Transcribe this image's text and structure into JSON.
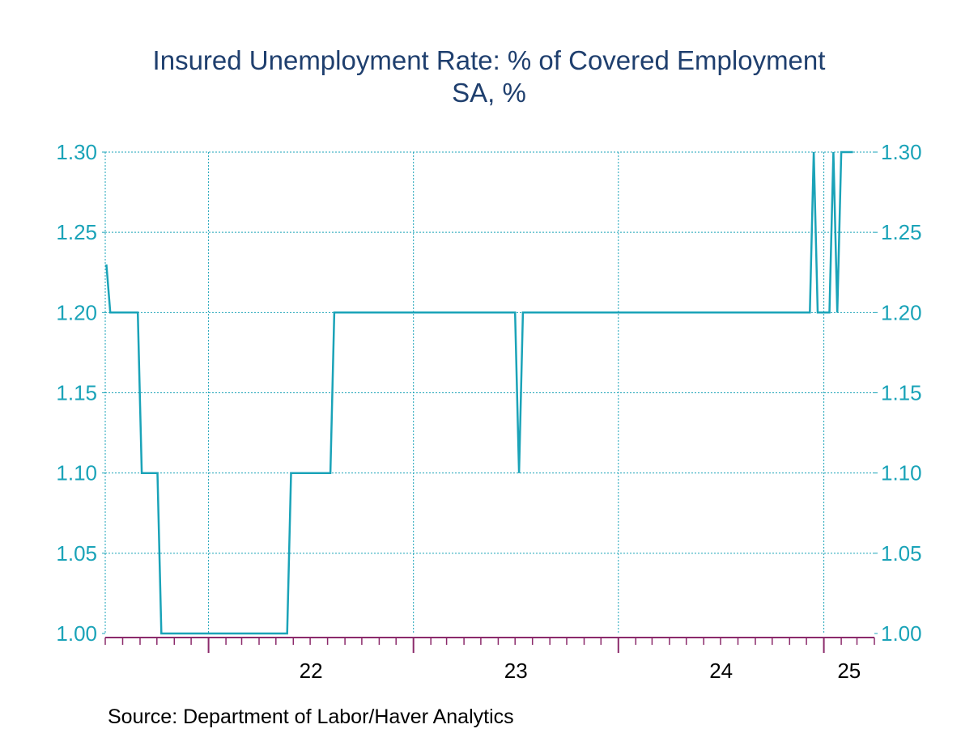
{
  "chart_data": {
    "type": "line",
    "title": "Insured Unemployment Rate: % of Covered Employment",
    "subtitle": "SA, %",
    "source": "Source:  Department of Labor/Haver Analytics",
    "ylim": [
      1.0,
      1.3
    ],
    "y_ticks": [
      "1.30",
      "1.25",
      "1.20",
      "1.15",
      "1.10",
      "1.05",
      "1.00"
    ],
    "x_tick_labels": [
      "22",
      "23",
      "24",
      "25"
    ],
    "grid": true,
    "colors": {
      "line": "#1aa3b8",
      "axis_text": "#1aa3b8",
      "title": "#1f3f6e",
      "x_axis": "#8b2a6b",
      "grid": "#1aa3b8"
    },
    "x_range": [
      "2021-07-01",
      "2025-04-01"
    ],
    "series": [
      {
        "x": [
          "2021-07-03",
          "2021-07-10",
          "2021-07-17",
          "2021-07-24",
          "2021-07-31",
          "2021-08-07",
          "2021-08-14",
          "2021-08-21",
          "2021-08-28",
          "2021-09-04",
          "2021-09-11",
          "2021-09-18",
          "2021-09-25",
          "2021-10-02",
          "2021-10-09",
          "2021-10-16",
          "2021-10-23",
          "2021-10-30",
          "2021-11-06",
          "2021-11-13",
          "2021-11-20",
          "2021-11-27",
          "2022-05-07",
          "2022-05-14",
          "2022-05-21",
          "2022-05-28",
          "2022-06-04",
          "2022-06-11",
          "2022-06-18",
          "2022-06-25",
          "2022-07-02",
          "2022-07-09",
          "2022-07-16",
          "2022-07-23",
          "2022-07-30",
          "2022-08-06",
          "2022-08-13",
          "2022-08-20",
          "2022-08-27",
          "2023-06-24",
          "2023-07-01",
          "2023-07-08",
          "2023-07-15",
          "2024-06-29",
          "2024-07-06",
          "2024-07-13",
          "2024-07-20",
          "2024-07-27",
          "2024-08-03",
          "2024-08-10",
          "2024-08-17",
          "2024-08-24",
          "2024-08-31",
          "2024-09-07",
          "2024-09-14",
          "2024-09-21",
          "2024-09-28",
          "2024-10-05",
          "2024-10-12",
          "2024-10-19",
          "2024-10-26",
          "2024-11-02",
          "2024-11-09",
          "2024-11-16",
          "2024-11-23",
          "2024-11-30",
          "2024-12-07",
          "2024-12-14",
          "2024-12-21",
          "2024-12-28",
          "2025-01-04",
          "2025-01-11",
          "2025-01-18",
          "2025-01-25",
          "2025-02-01",
          "2025-02-08",
          "2025-02-15",
          "2025-02-22"
        ],
        "values": [
          1.23,
          1.2,
          1.2,
          1.2,
          1.2,
          1.2,
          1.2,
          1.2,
          1.2,
          1.1,
          1.1,
          1.1,
          1.1,
          1.1,
          1.0,
          1.0,
          1.0,
          1.0,
          1.0,
          1.0,
          1.0,
          1.0,
          1.0,
          1.0,
          1.0,
          1.1,
          1.1,
          1.1,
          1.1,
          1.1,
          1.1,
          1.1,
          1.1,
          1.1,
          1.1,
          1.1,
          1.2,
          1.2,
          1.2,
          1.2,
          1.2,
          1.1,
          1.2,
          1.2,
          1.2,
          1.2,
          1.2,
          1.2,
          1.2,
          1.2,
          1.2,
          1.2,
          1.2,
          1.2,
          1.2,
          1.2,
          1.2,
          1.2,
          1.2,
          1.2,
          1.2,
          1.2,
          1.2,
          1.2,
          1.2,
          1.2,
          1.2,
          1.3,
          1.2,
          1.2,
          1.2,
          1.2,
          1.3,
          1.2,
          1.3,
          1.3,
          1.3,
          1.3
        ]
      }
    ]
  }
}
